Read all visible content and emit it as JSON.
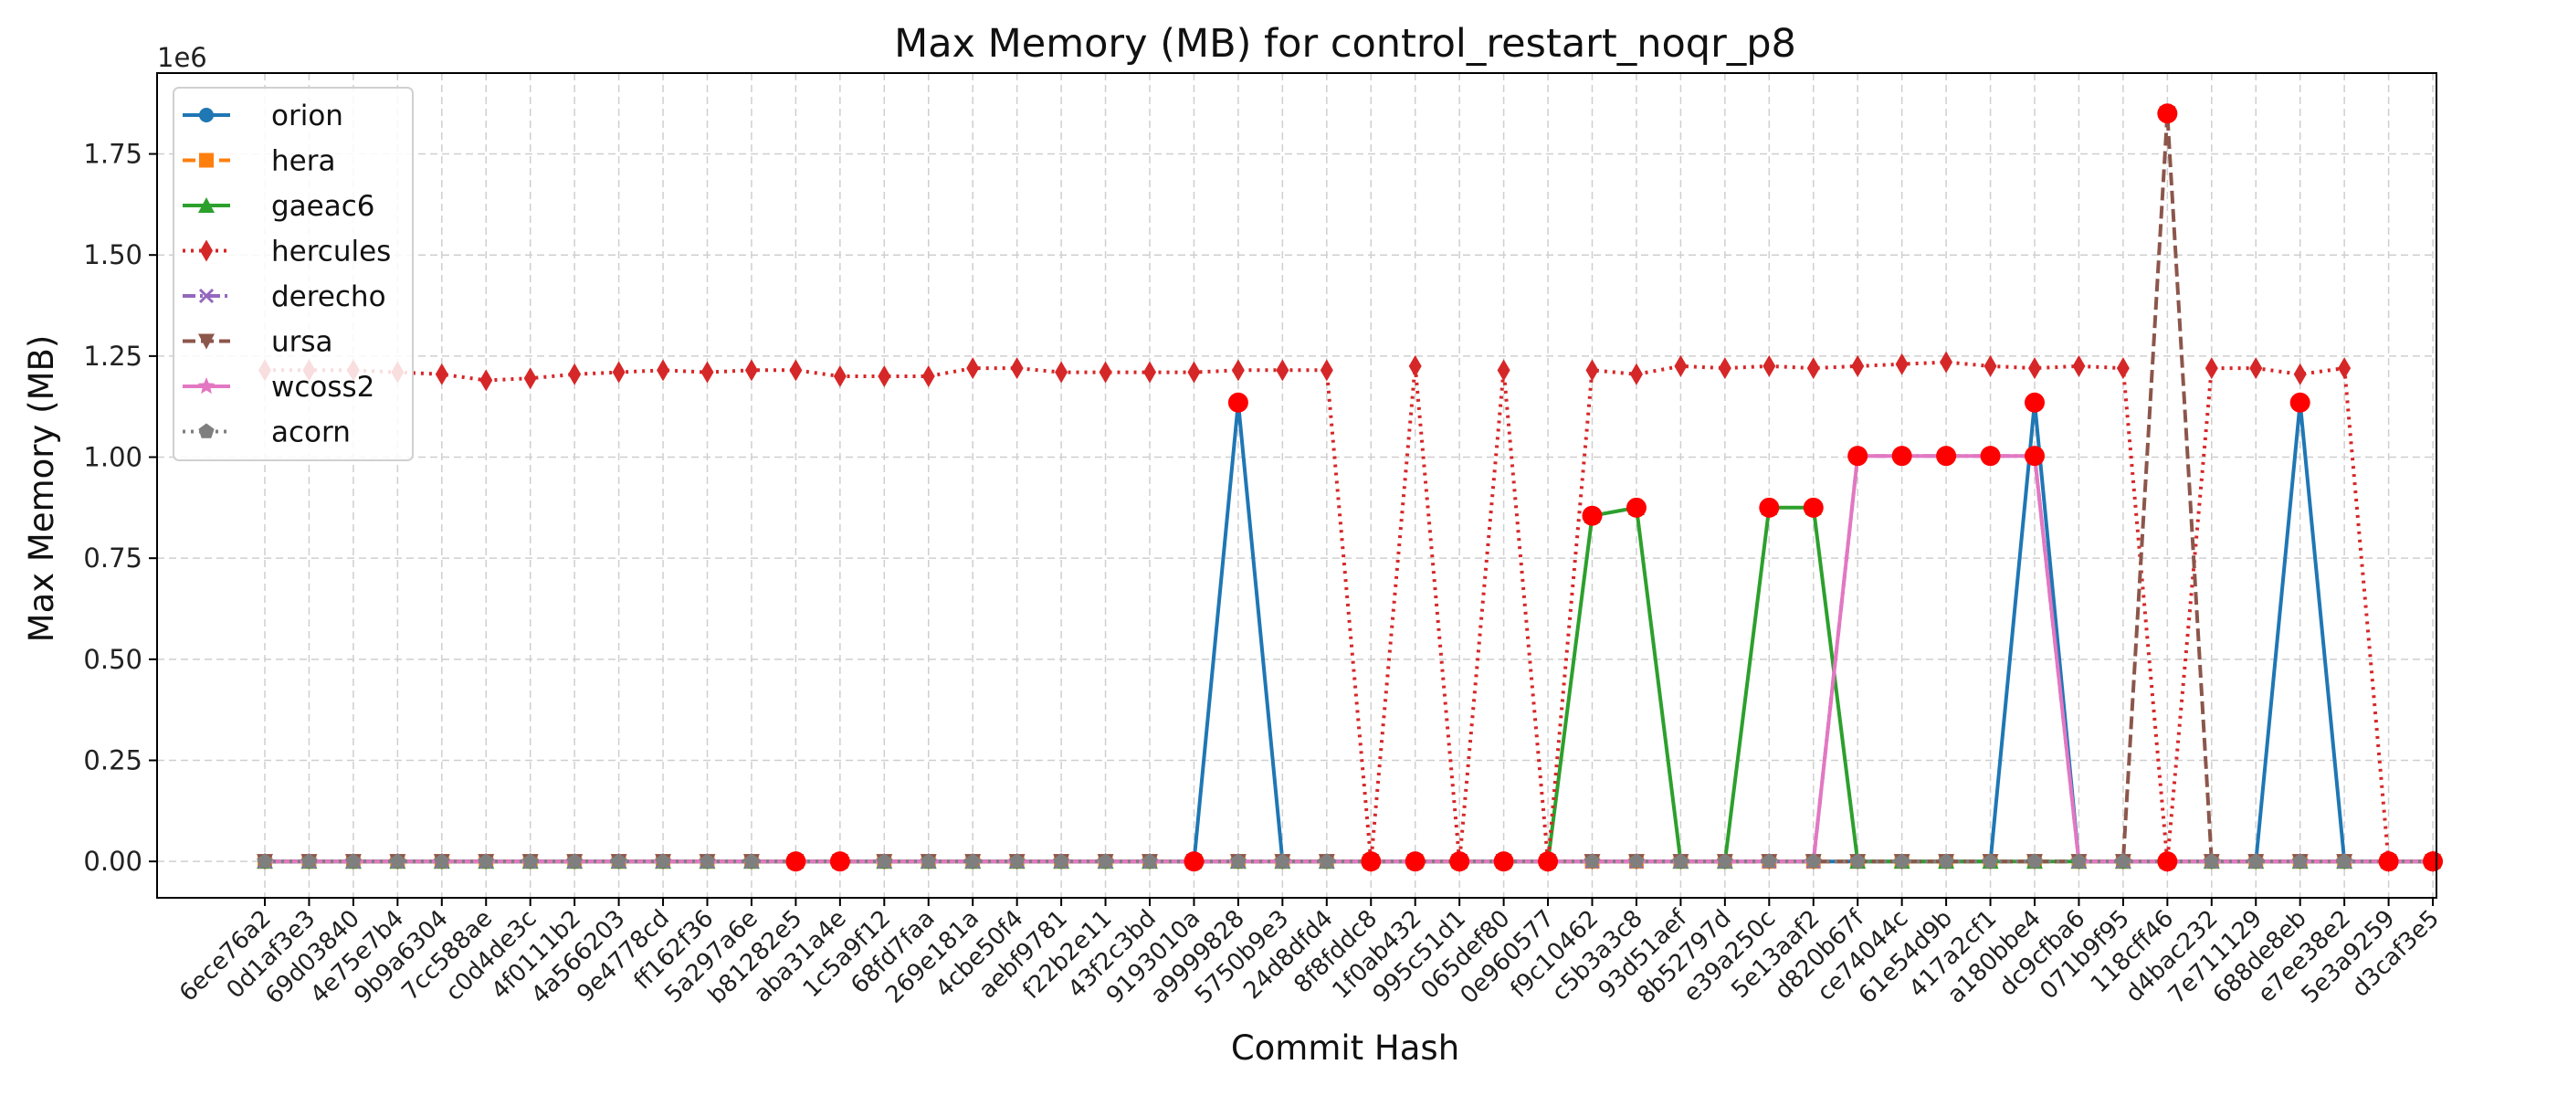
{
  "chart_data": {
    "type": "line",
    "title": "Max Memory (MB) for control_restart_noqr_p8",
    "xlabel": "Commit Hash",
    "ylabel": "Max Memory (MB)",
    "y_offset_label": "1e6",
    "y_scale_factor": 1000000,
    "ylim": [
      -0.09,
      1.95
    ],
    "yticks": [
      0.0,
      0.25,
      0.5,
      0.75,
      1.0,
      1.25,
      1.5,
      1.75
    ],
    "ytick_labels": [
      "0.00",
      "0.25",
      "0.50",
      "0.75",
      "1.00",
      "1.25",
      "1.50",
      "1.75"
    ],
    "grid": true,
    "legend_position": "upper-left",
    "categories": [
      "6ece76a2",
      "0d1af3e3",
      "69d03840",
      "4e75e7b4",
      "9b9a6304",
      "7cc588ae",
      "c0d4de3c",
      "4f0111b2",
      "4a566203",
      "9e4778cd",
      "ff162f36",
      "5a297a6e",
      "b81282e5",
      "aba31a4e",
      "1c5a9f12",
      "68fd7faa",
      "269e181a",
      "4cbe50f4",
      "aebf9781",
      "f22b2e11",
      "43f2c3bd",
      "9193010a",
      "a9999828",
      "5750b9e3",
      "24d8dfd4",
      "8f8fddc8",
      "1f0ab432",
      "995c51d1",
      "065def80",
      "0e960577",
      "f9c10462",
      "c5b3a3c8",
      "93d51aef",
      "8b52797d",
      "e39a250c",
      "5e13aaf2",
      "d820b67f",
      "ce74044c",
      "61e54d9b",
      "417a2cf1",
      "a180bbe4",
      "dc9cfba6",
      "071b9f95",
      "118cff46",
      "d4bac232",
      "7e711129",
      "688de8eb",
      "e7ee38e2",
      "5e3a9259",
      "d3caf3e5"
    ],
    "series": [
      {
        "name": "orion",
        "color": "#1f77b4",
        "dash": "solid",
        "marker": "circle",
        "values": [
          0,
          0,
          0,
          0,
          0,
          0,
          0,
          0,
          0,
          0,
          0,
          0,
          0,
          0,
          0,
          0,
          0,
          0,
          0,
          0,
          0,
          0,
          1.135,
          0,
          0,
          0,
          0,
          0,
          0,
          0,
          0,
          0,
          0,
          0,
          0,
          0,
          0,
          0,
          0,
          0,
          1.135,
          0,
          0,
          0,
          0,
          0,
          1.135,
          0,
          0,
          0
        ]
      },
      {
        "name": "hera",
        "color": "#ff7f0e",
        "dash": "dashed",
        "marker": "square",
        "values": [
          0,
          0,
          0,
          0,
          0,
          0,
          0,
          0,
          0,
          0,
          0,
          0,
          0,
          0,
          0,
          0,
          0,
          0,
          0,
          0,
          0,
          0,
          0,
          0,
          0,
          0,
          0,
          0,
          0,
          0,
          0,
          0,
          0,
          0,
          0,
          0,
          0,
          0,
          0,
          0,
          0,
          0,
          0,
          0,
          0,
          0,
          0,
          0,
          0,
          0
        ]
      },
      {
        "name": "gaeac6",
        "color": "#2ca02c",
        "dash": "solid",
        "marker": "triangle-up",
        "values": [
          0,
          0,
          0,
          0,
          0,
          0,
          0,
          0,
          0,
          0,
          0,
          0,
          0,
          0,
          0,
          0,
          0,
          0,
          0,
          0,
          0,
          0,
          0,
          0,
          0,
          0,
          0,
          0,
          0,
          0,
          0.855,
          0.875,
          0,
          0,
          0.875,
          0.875,
          0,
          0,
          0,
          0,
          0,
          0,
          0,
          0,
          0,
          0,
          0,
          0,
          0,
          0
        ]
      },
      {
        "name": "hercules",
        "color": "#d62728",
        "dash": "dotted",
        "marker": "diamond",
        "values": [
          1.215,
          1.215,
          1.215,
          1.21,
          1.205,
          1.19,
          1.195,
          1.205,
          1.21,
          1.215,
          1.21,
          1.215,
          1.215,
          1.2,
          1.2,
          1.2,
          1.22,
          1.22,
          1.21,
          1.21,
          1.21,
          1.21,
          1.215,
          1.215,
          1.215,
          0,
          1.225,
          0,
          1.215,
          0,
          1.215,
          1.205,
          1.225,
          1.22,
          1.225,
          1.22,
          1.225,
          1.23,
          1.235,
          1.225,
          1.22,
          1.225,
          1.22,
          0,
          1.22,
          1.22,
          1.205,
          1.22,
          0,
          0
        ]
      },
      {
        "name": "derecho",
        "color": "#9467bd",
        "dash": "dashdot",
        "marker": "x",
        "values": [
          0,
          0,
          0,
          0,
          0,
          0,
          0,
          0,
          0,
          0,
          0,
          0,
          0,
          0,
          0,
          0,
          0,
          0,
          0,
          0,
          0,
          0,
          0,
          0,
          0,
          0,
          0,
          0,
          0,
          0,
          0,
          0,
          0,
          0,
          0,
          0,
          1.003,
          1.003,
          1.003,
          1.003,
          1.003,
          0,
          0,
          0,
          0,
          0,
          0,
          0,
          0,
          0
        ]
      },
      {
        "name": "ursa",
        "color": "#8c564b",
        "dash": "dashed",
        "marker": "triangle-down",
        "values": [
          0,
          0,
          0,
          0,
          0,
          0,
          0,
          0,
          0,
          0,
          0,
          0,
          0,
          0,
          0,
          0,
          0,
          0,
          0,
          0,
          0,
          0,
          0,
          0,
          0,
          0,
          0,
          0,
          0,
          0,
          0,
          0,
          0,
          0,
          0,
          0,
          0,
          0,
          0,
          0,
          0,
          0,
          0,
          1.85,
          0,
          0,
          0,
          0,
          0,
          0
        ]
      },
      {
        "name": "wcoss2",
        "color": "#e377c2",
        "dash": "solid",
        "marker": "star",
        "values": [
          0,
          0,
          0,
          0,
          0,
          0,
          0,
          0,
          0,
          0,
          0,
          0,
          0,
          0,
          0,
          0,
          0,
          0,
          0,
          0,
          0,
          0,
          0,
          0,
          0,
          0,
          0,
          0,
          0,
          0,
          0,
          0,
          0,
          0,
          0,
          0,
          1.003,
          1.003,
          1.003,
          1.003,
          1.003,
          0,
          0,
          0,
          0,
          0,
          0,
          0,
          0,
          0
        ]
      },
      {
        "name": "acorn",
        "color": "#7f7f7f",
        "dash": "dotted",
        "marker": "pentagon",
        "values": [
          0,
          0,
          0,
          0,
          0,
          0,
          0,
          0,
          0,
          0,
          0,
          0,
          0,
          0,
          0,
          0,
          0,
          0,
          0,
          0,
          0,
          0,
          0,
          0,
          0,
          0,
          0,
          0,
          0,
          0,
          0,
          0,
          0,
          0,
          0,
          0,
          0,
          0,
          0,
          0,
          0,
          0,
          0,
          0,
          0,
          0,
          0,
          0,
          0,
          0
        ]
      }
    ],
    "highlight_color": "#ff0000",
    "highlights": [
      {
        "x": "b81282e5",
        "y": 0
      },
      {
        "x": "aba31a4e",
        "y": 0
      },
      {
        "x": "9193010a",
        "y": 0
      },
      {
        "x": "a9999828",
        "y": 1.135
      },
      {
        "x": "8f8fddc8",
        "y": 0
      },
      {
        "x": "1f0ab432",
        "y": 0
      },
      {
        "x": "995c51d1",
        "y": 0
      },
      {
        "x": "065def80",
        "y": 0
      },
      {
        "x": "0e960577",
        "y": 0
      },
      {
        "x": "f9c10462",
        "y": 0.855
      },
      {
        "x": "c5b3a3c8",
        "y": 0.875
      },
      {
        "x": "e39a250c",
        "y": 0.875
      },
      {
        "x": "5e13aaf2",
        "y": 0.875
      },
      {
        "x": "d820b67f",
        "y": 1.003
      },
      {
        "x": "ce74044c",
        "y": 1.003
      },
      {
        "x": "61e54d9b",
        "y": 1.003
      },
      {
        "x": "417a2cf1",
        "y": 1.003
      },
      {
        "x": "a180bbe4",
        "y": 1.003
      },
      {
        "x": "a180bbe4",
        "y": 1.135
      },
      {
        "x": "118cff46",
        "y": 1.85
      },
      {
        "x": "118cff46",
        "y": 0
      },
      {
        "x": "688de8eb",
        "y": 1.135
      },
      {
        "x": "5e3a9259",
        "y": 0
      },
      {
        "x": "d3caf3e5",
        "y": 0
      }
    ]
  }
}
